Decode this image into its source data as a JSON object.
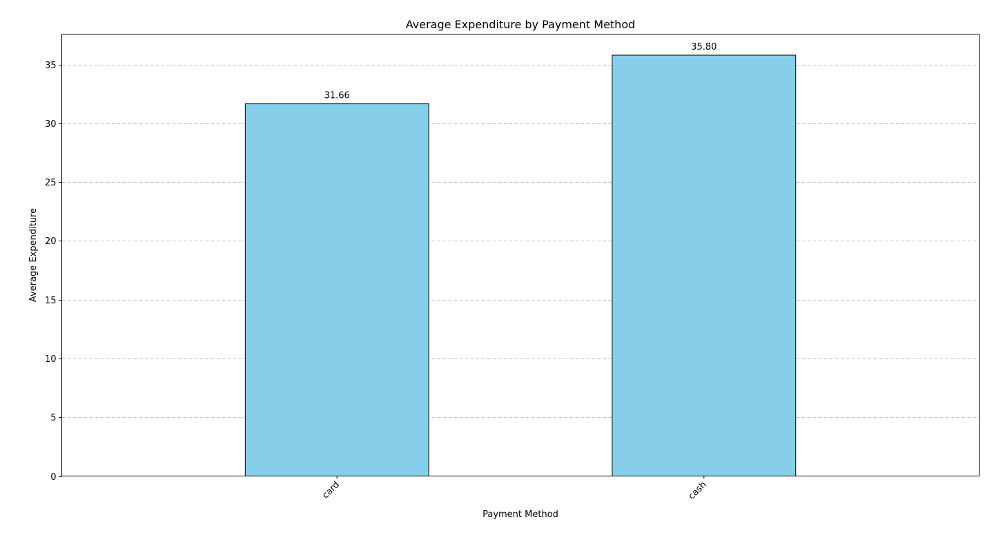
{
  "chart_data": {
    "type": "bar",
    "title": "Average Expenditure by Payment Method",
    "xlabel": "Payment Method",
    "ylabel": "Average Expenditure",
    "categories": [
      "card",
      "cash"
    ],
    "values": [
      31.66,
      35.8
    ],
    "value_labels": [
      "31.66",
      "35.80"
    ],
    "ylim": [
      0,
      37.59
    ],
    "yticks": [
      0,
      5,
      10,
      15,
      20,
      25,
      30,
      35
    ],
    "ytick_labels": [
      "0",
      "5",
      "10",
      "15",
      "20",
      "25",
      "30",
      "35"
    ],
    "grid": "y-dashed",
    "bar_color": "#87ceeb",
    "bar_edge_color": "#000000",
    "grid_color": "#c0c0c0"
  }
}
